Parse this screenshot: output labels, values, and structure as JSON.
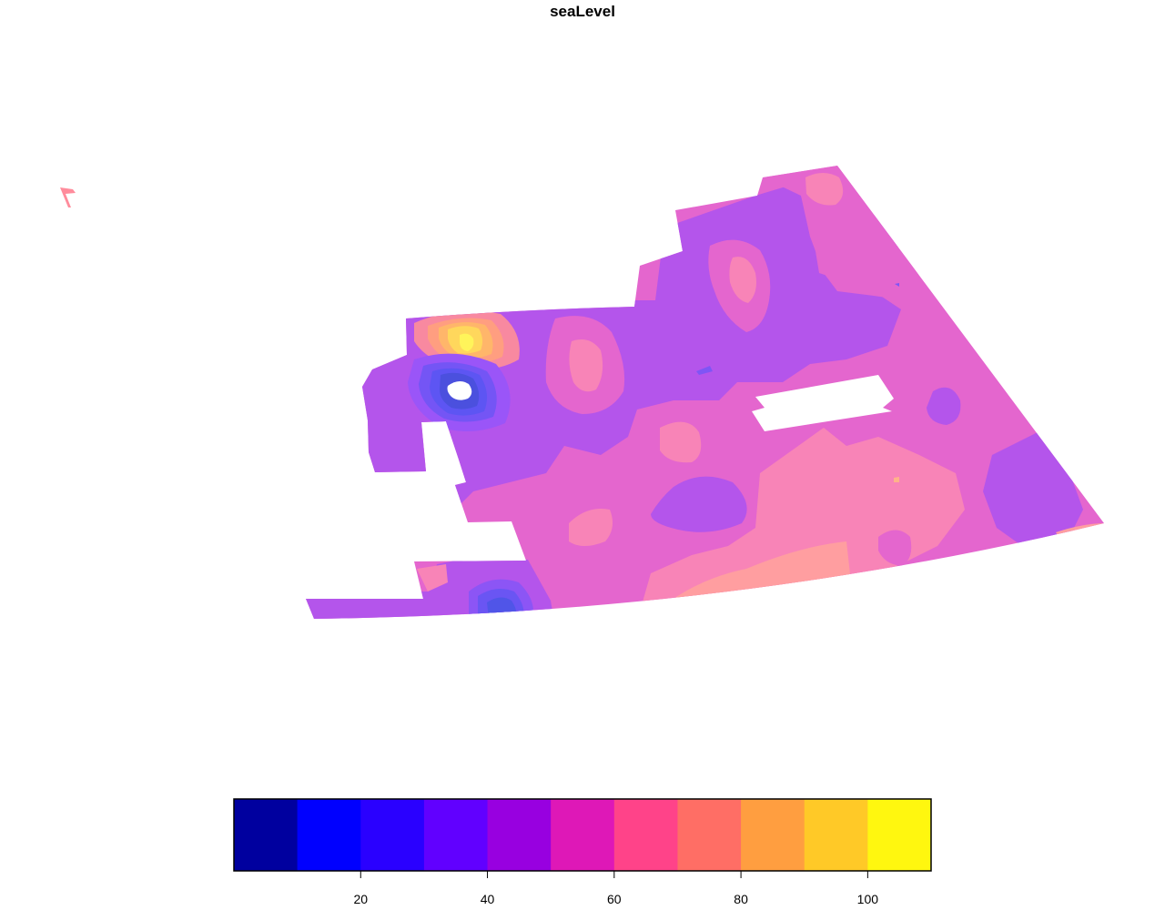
{
  "title": "seaLevel",
  "legend": {
    "bins": [
      {
        "from": 0,
        "to": 10,
        "color": "#00009F"
      },
      {
        "from": 10,
        "to": 20,
        "color": "#0000FF"
      },
      {
        "from": 20,
        "to": 30,
        "color": "#2A00FF"
      },
      {
        "from": 30,
        "to": 40,
        "color": "#6100FF"
      },
      {
        "from": 40,
        "to": 50,
        "color": "#9800E0"
      },
      {
        "from": 50,
        "to": 60,
        "color": "#DE18B7"
      },
      {
        "from": 60,
        "to": 70,
        "color": "#FF4389"
      },
      {
        "from": 70,
        "to": 80,
        "color": "#FF6E65"
      },
      {
        "from": 80,
        "to": 90,
        "color": "#FF9E40"
      },
      {
        "from": 90,
        "to": 100,
        "color": "#FFC927"
      },
      {
        "from": 100,
        "to": 110,
        "color": "#FFF70F"
      }
    ],
    "ticks": [
      20,
      40,
      60,
      80,
      100
    ],
    "tick_labels": [
      "20",
      "40",
      "60",
      "80",
      "100"
    ],
    "range": [
      0,
      110
    ]
  },
  "chart_data": {
    "type": "heatmap",
    "title": "seaLevel",
    "variable": "seaLevel",
    "value_range": [
      0,
      110
    ],
    "levels": [
      0,
      10,
      20,
      30,
      40,
      50,
      60,
      70,
      80,
      90,
      100,
      110
    ],
    "dominant_values": [
      40,
      50,
      60,
      70
    ],
    "features": [
      {
        "kind": "peak",
        "level": [
          100,
          110
        ],
        "location": "north-west"
      },
      {
        "kind": "trough",
        "level": [
          10,
          20
        ],
        "location": "west"
      },
      {
        "kind": "trough",
        "level": [
          20,
          30
        ],
        "location": "south-west"
      },
      {
        "kind": "high",
        "level": [
          70,
          80
        ],
        "location": "south-east"
      }
    ],
    "grid": false,
    "legend_position": "bottom"
  }
}
